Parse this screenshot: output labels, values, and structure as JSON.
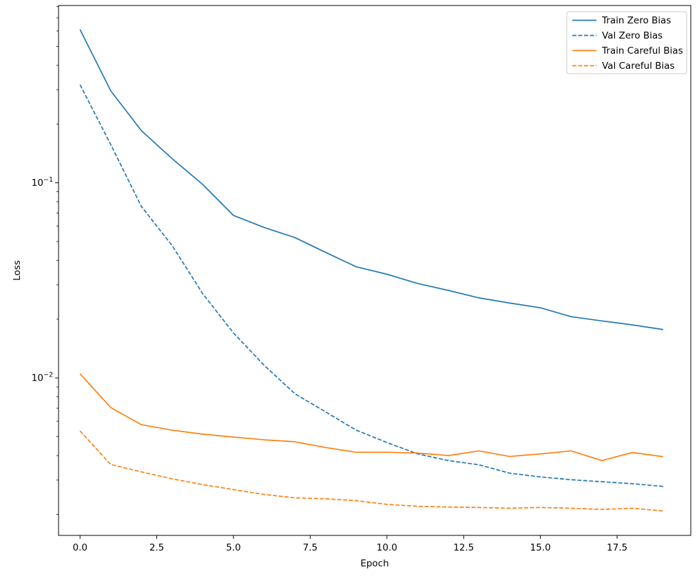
{
  "figure": {
    "background": "#ffffff"
  },
  "chart_data": {
    "type": "line",
    "title": "",
    "xlabel": "Epoch",
    "ylabel": "Loss",
    "yscale": "log",
    "grid": false,
    "legend_position": "upper right",
    "xlim": [
      -0.7,
      19.9
    ],
    "ylim": [
      0.00156,
      0.81
    ],
    "x": [
      0,
      1,
      2,
      3,
      4,
      5,
      6,
      7,
      8,
      9,
      10,
      11,
      12,
      13,
      14,
      15,
      16,
      17,
      18,
      19
    ],
    "xticks": [
      {
        "value": 0,
        "label": "0.0"
      },
      {
        "value": 2.5,
        "label": "2.5"
      },
      {
        "value": 5,
        "label": "5.0"
      },
      {
        "value": 7.5,
        "label": "7.5"
      },
      {
        "value": 10,
        "label": "10.0"
      },
      {
        "value": 12.5,
        "label": "12.5"
      },
      {
        "value": 15,
        "label": "15.0"
      },
      {
        "value": 17.5,
        "label": "17.5"
      }
    ],
    "yticks": [
      {
        "value": 0.1,
        "base": "10",
        "exponent": "−1"
      },
      {
        "value": 0.01,
        "base": "10",
        "exponent": "−2"
      }
    ],
    "series": [
      {
        "name": "Train Zero Bias",
        "color": "#1f77b4",
        "style": "solid",
        "values": [
          0.61,
          0.296,
          0.185,
          0.133,
          0.098,
          0.068,
          0.059,
          0.0524,
          0.044,
          0.0371,
          0.034,
          0.0305,
          0.0281,
          0.0257,
          0.0242,
          0.0229,
          0.0206,
          0.0196,
          0.0187,
          0.0177
        ]
      },
      {
        "name": "Val Zero Bias",
        "color": "#1f77b4",
        "style": "dashed",
        "values": [
          0.318,
          0.157,
          0.0756,
          0.0477,
          0.027,
          0.017,
          0.0116,
          0.0083,
          0.0067,
          0.0054,
          0.00467,
          0.00408,
          0.00377,
          0.00359,
          0.00325,
          0.00311,
          0.00301,
          0.00294,
          0.00287,
          0.00278
        ]
      },
      {
        "name": "Train Careful Bias",
        "color": "#ff7f0e",
        "style": "solid",
        "values": [
          0.0105,
          0.00705,
          0.00576,
          0.0054,
          0.00515,
          0.00498,
          0.00482,
          0.00471,
          0.0044,
          0.00416,
          0.00416,
          0.00412,
          0.004,
          0.00423,
          0.00396,
          0.00408,
          0.00423,
          0.00377,
          0.00415,
          0.00395
        ]
      },
      {
        "name": "Val Careful Bias",
        "color": "#ff7f0e",
        "style": "dashed",
        "values": [
          0.00535,
          0.0036,
          0.0033,
          0.00304,
          0.00284,
          0.00268,
          0.00253,
          0.00243,
          0.0024,
          0.00235,
          0.00225,
          0.0022,
          0.00218,
          0.00217,
          0.00215,
          0.00217,
          0.00215,
          0.00212,
          0.00215,
          0.00208
        ]
      }
    ]
  }
}
